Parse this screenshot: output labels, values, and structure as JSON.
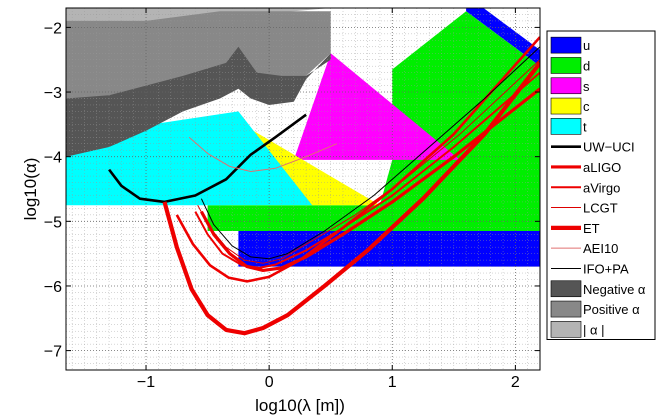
{
  "chart_data": {
    "type": "area",
    "xlabel": "log10(λ [m])",
    "ylabel": "log10(α)",
    "xlim": [
      -1.65,
      2.2
    ],
    "ylim": [
      -7.3,
      -1.7
    ],
    "x_ticks": [
      -1,
      0,
      1,
      2
    ],
    "x_tick_labels": [
      "−1",
      "0",
      "1",
      "2"
    ],
    "y_ticks": [
      -2,
      -3,
      -4,
      -5,
      -6,
      -7
    ],
    "y_tick_labels": [
      "−2",
      "−3",
      "−4",
      "−5",
      "−6",
      "−7"
    ],
    "grid": "dotted",
    "legend_position": "right",
    "legend": [
      {
        "label": "u",
        "kind": "patch",
        "color": "#0000ff"
      },
      {
        "label": "d",
        "kind": "patch",
        "color": "#00ee00"
      },
      {
        "label": "s",
        "kind": "patch",
        "color": "#ff00ff"
      },
      {
        "label": "c",
        "kind": "patch",
        "color": "#ffff00"
      },
      {
        "label": "t",
        "kind": "patch",
        "color": "#00ffff"
      },
      {
        "label": "UW−UCI",
        "kind": "line",
        "color": "#000000",
        "width": 2.6
      },
      {
        "label": "aLIGO",
        "kind": "line",
        "color": "#ee0000",
        "width": 3.2
      },
      {
        "label": "aVirgo",
        "kind": "line",
        "color": "#ee0000",
        "width": 2.0
      },
      {
        "label": "LCGT",
        "kind": "line",
        "color": "#dd0000",
        "width": 1.0
      },
      {
        "label": "ET",
        "kind": "line",
        "color": "#ee0000",
        "width": 4.2
      },
      {
        "label": "AEI10",
        "kind": "line",
        "color": "#e07070",
        "width": 1.0
      },
      {
        "label": "IFO+PA",
        "kind": "line",
        "color": "#000000",
        "width": 1.0
      },
      {
        "label": "Negative α",
        "kind": "patch",
        "color": "#555555"
      },
      {
        "label": "Positive α",
        "kind": "patch",
        "color": "#888888"
      },
      {
        "label": "| α |",
        "kind": "patch",
        "color": "#b4b4b4"
      }
    ],
    "regions": [
      {
        "name": "u",
        "color": "#0000ff",
        "points": [
          [
            -0.25,
            -5.15
          ],
          [
            2.2,
            -5.15
          ],
          [
            2.2,
            -5.7
          ],
          [
            -0.25,
            -5.7
          ]
        ]
      },
      {
        "name": "u",
        "color": "#0000ff",
        "points": [
          [
            1.6,
            -1.5
          ],
          [
            2.2,
            -2.35
          ],
          [
            2.2,
            -2.6
          ],
          [
            1.6,
            -1.75
          ]
        ]
      },
      {
        "name": "d",
        "color": "#00ee00",
        "points": [
          [
            -0.5,
            -4.75
          ],
          [
            -0.5,
            -5.15
          ],
          [
            2.2,
            -5.15
          ],
          [
            2.2,
            -2.6
          ],
          [
            1.6,
            -1.75
          ],
          [
            1.0,
            -2.65
          ],
          [
            1.0,
            -4.05
          ],
          [
            0.9,
            -4.75
          ]
        ]
      },
      {
        "name": "s",
        "color": "#ff00ff",
        "points": [
          [
            0.5,
            -2.4
          ],
          [
            1.55,
            -4.05
          ],
          [
            0.2,
            -4.05
          ]
        ]
      },
      {
        "name": "c",
        "color": "#ffff00",
        "points": [
          [
            -0.35,
            -3.35
          ],
          [
            0.9,
            -4.75
          ],
          [
            -0.35,
            -4.75
          ]
        ]
      },
      {
        "name": "t",
        "color": "#00ffff",
        "points": [
          [
            -1.65,
            -3.7
          ],
          [
            -0.25,
            -3.3
          ],
          [
            0.35,
            -4.75
          ],
          [
            -1.65,
            -4.75
          ]
        ]
      },
      {
        "name": "| α |",
        "color": "#b4b4b4",
        "points": [
          [
            -1.65,
            -1.0
          ],
          [
            2.2,
            -1.0
          ],
          [
            2.2,
            -1.7
          ],
          [
            0.5,
            -1.7
          ],
          [
            -0.4,
            -1.85
          ],
          [
            -1.0,
            -2.0
          ],
          [
            -1.65,
            -2.2
          ]
        ]
      },
      {
        "name": "Positive α",
        "color": "#888888",
        "points": [
          [
            -1.65,
            -1.9
          ],
          [
            -1.0,
            -1.9
          ],
          [
            -0.4,
            -1.75
          ],
          [
            0.5,
            -1.75
          ],
          [
            0.5,
            -2.4
          ],
          [
            0.3,
            -2.75
          ],
          [
            0.1,
            -2.85
          ],
          [
            -0.1,
            -2.85
          ],
          [
            -0.25,
            -2.5
          ],
          [
            -0.35,
            -2.65
          ],
          [
            -0.7,
            -2.9
          ],
          [
            -1.0,
            -3.05
          ],
          [
            -1.3,
            -3.25
          ],
          [
            -1.65,
            -3.6
          ]
        ]
      },
      {
        "name": "Negative α",
        "color": "#555555",
        "points": [
          [
            -1.65,
            -3.1
          ],
          [
            -1.3,
            -3.05
          ],
          [
            -1.0,
            -2.9
          ],
          [
            -0.7,
            -2.75
          ],
          [
            -0.35,
            -2.55
          ],
          [
            -0.25,
            -2.3
          ],
          [
            -0.1,
            -2.7
          ],
          [
            0.1,
            -2.75
          ],
          [
            0.3,
            -2.75
          ],
          [
            0.5,
            -2.5
          ],
          [
            0.5,
            -2.4
          ],
          [
            0.3,
            -2.8
          ],
          [
            0.2,
            -3.15
          ],
          [
            0.0,
            -3.2
          ],
          [
            -0.15,
            -3.1
          ],
          [
            -0.25,
            -2.95
          ],
          [
            -0.4,
            -3.1
          ],
          [
            -0.7,
            -3.3
          ],
          [
            -1.0,
            -3.6
          ],
          [
            -1.3,
            -3.85
          ],
          [
            -1.65,
            -4.0
          ]
        ]
      }
    ],
    "series": [
      {
        "name": "UW−UCI",
        "color": "#000000",
        "width": 2.6,
        "points": [
          [
            -1.3,
            -4.2
          ],
          [
            -1.2,
            -4.45
          ],
          [
            -1.05,
            -4.65
          ],
          [
            -0.85,
            -4.7
          ],
          [
            -0.6,
            -4.6
          ],
          [
            -0.35,
            -4.35
          ],
          [
            -0.15,
            -3.97
          ],
          [
            0.05,
            -3.7
          ],
          [
            0.3,
            -3.35
          ]
        ]
      },
      {
        "name": "aLIGO",
        "color": "#ee0000",
        "width": 3.2,
        "points": [
          [
            -0.55,
            -4.85
          ],
          [
            -0.45,
            -5.2
          ],
          [
            -0.32,
            -5.5
          ],
          [
            -0.18,
            -5.7
          ],
          [
            -0.05,
            -5.76
          ],
          [
            0.1,
            -5.72
          ],
          [
            0.3,
            -5.55
          ],
          [
            0.6,
            -5.2
          ],
          [
            1.0,
            -4.7
          ],
          [
            1.5,
            -4.0
          ],
          [
            2.2,
            -2.95
          ]
        ]
      },
      {
        "name": "aVirgo",
        "color": "#ee0000",
        "width": 2.0,
        "points": [
          [
            -0.6,
            -4.85
          ],
          [
            -0.5,
            -5.2
          ],
          [
            -0.38,
            -5.5
          ],
          [
            -0.22,
            -5.68
          ],
          [
            -0.08,
            -5.72
          ],
          [
            0.05,
            -5.67
          ],
          [
            0.3,
            -5.45
          ],
          [
            0.6,
            -5.1
          ],
          [
            1.0,
            -4.6
          ],
          [
            1.5,
            -3.85
          ],
          [
            2.2,
            -2.7
          ]
        ]
      },
      {
        "name": "LCGT",
        "color": "#dd0000",
        "width": 1.0,
        "points": [
          [
            -0.58,
            -4.75
          ],
          [
            -0.48,
            -5.1
          ],
          [
            -0.35,
            -5.4
          ],
          [
            -0.2,
            -5.6
          ],
          [
            -0.05,
            -5.65
          ],
          [
            0.1,
            -5.58
          ],
          [
            0.35,
            -5.3
          ],
          [
            0.7,
            -4.9
          ],
          [
            1.1,
            -4.35
          ],
          [
            1.55,
            -3.65
          ],
          [
            2.2,
            -2.5
          ]
        ]
      },
      {
        "name": "ET",
        "color": "#ee0000",
        "width": 4.2,
        "points": [
          [
            -0.85,
            -4.7
          ],
          [
            -0.75,
            -5.4
          ],
          [
            -0.63,
            -6.05
          ],
          [
            -0.5,
            -6.45
          ],
          [
            -0.35,
            -6.68
          ],
          [
            -0.2,
            -6.73
          ],
          [
            -0.05,
            -6.65
          ],
          [
            0.15,
            -6.45
          ],
          [
            0.45,
            -6.0
          ],
          [
            0.8,
            -5.45
          ],
          [
            1.25,
            -4.65
          ],
          [
            1.75,
            -3.65
          ],
          [
            2.2,
            -2.55
          ]
        ]
      },
      {
        "name": "ET",
        "color": "#ee0000",
        "width": 2.6,
        "points": [
          [
            -0.75,
            -4.9
          ],
          [
            -0.62,
            -5.35
          ],
          [
            -0.48,
            -5.68
          ],
          [
            -0.33,
            -5.87
          ],
          [
            -0.18,
            -5.93
          ],
          [
            0.0,
            -5.86
          ],
          [
            0.25,
            -5.6
          ],
          [
            0.6,
            -5.1
          ],
          [
            1.0,
            -4.5
          ],
          [
            1.5,
            -3.65
          ],
          [
            2.2,
            -2.15
          ]
        ]
      },
      {
        "name": "AEI10",
        "color": "#e07070",
        "width": 1.0,
        "points": [
          [
            -0.65,
            -3.7
          ],
          [
            -0.5,
            -3.95
          ],
          [
            -0.32,
            -4.15
          ],
          [
            -0.15,
            -4.23
          ],
          [
            0.05,
            -4.18
          ],
          [
            0.3,
            -4.0
          ],
          [
            0.55,
            -3.8
          ]
        ]
      },
      {
        "name": "IFO+PA",
        "color": "#000000",
        "width": 1.0,
        "points": [
          [
            -0.55,
            -4.65
          ],
          [
            -0.45,
            -5.05
          ],
          [
            -0.3,
            -5.38
          ],
          [
            -0.15,
            -5.55
          ],
          [
            0.0,
            -5.58
          ],
          [
            0.15,
            -5.5
          ],
          [
            0.45,
            -5.15
          ],
          [
            0.85,
            -4.6
          ],
          [
            1.3,
            -3.85
          ],
          [
            1.75,
            -3.1
          ],
          [
            2.2,
            -2.3
          ]
        ]
      }
    ]
  }
}
